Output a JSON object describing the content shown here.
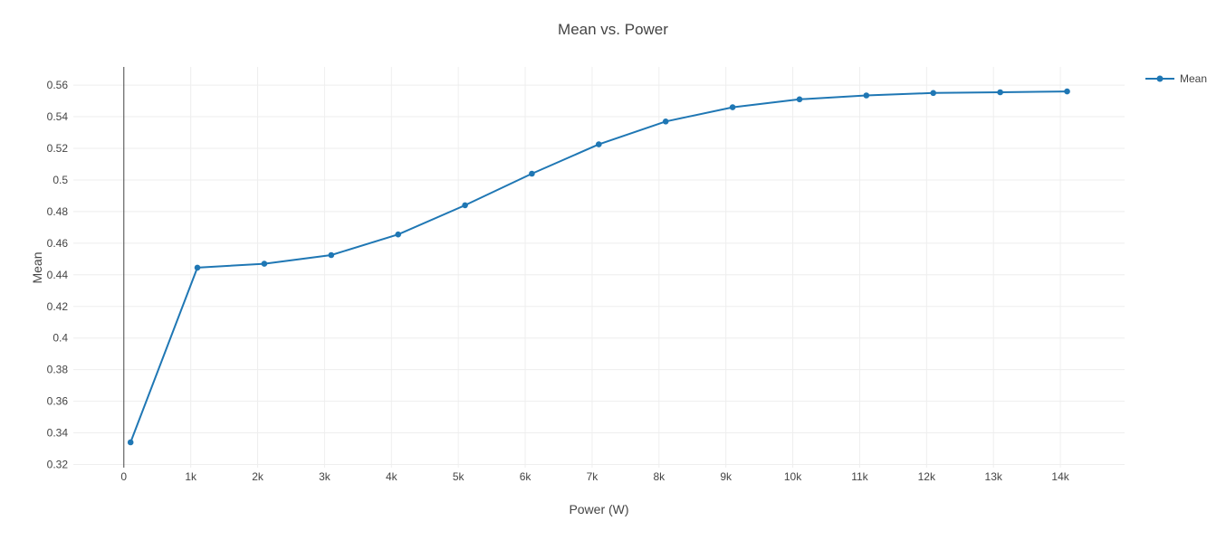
{
  "chart_data": {
    "type": "line",
    "title": "Mean vs. Power",
    "xlabel": "Power (W)",
    "ylabel": "Mean",
    "legend_position": "right",
    "grid": true,
    "xlim": [
      -755,
      14960
    ],
    "ylim": [
      0.318,
      0.5715
    ],
    "x_ticks": [
      {
        "value": 0,
        "label": "0"
      },
      {
        "value": 1000,
        "label": "1k"
      },
      {
        "value": 2000,
        "label": "2k"
      },
      {
        "value": 3000,
        "label": "3k"
      },
      {
        "value": 4000,
        "label": "4k"
      },
      {
        "value": 5000,
        "label": "5k"
      },
      {
        "value": 6000,
        "label": "6k"
      },
      {
        "value": 7000,
        "label": "7k"
      },
      {
        "value": 8000,
        "label": "8k"
      },
      {
        "value": 9000,
        "label": "9k"
      },
      {
        "value": 10000,
        "label": "10k"
      },
      {
        "value": 11000,
        "label": "11k"
      },
      {
        "value": 12000,
        "label": "12k"
      },
      {
        "value": 13000,
        "label": "13k"
      },
      {
        "value": 14000,
        "label": "14k"
      }
    ],
    "y_ticks": [
      {
        "value": 0.32,
        "label": "0.32"
      },
      {
        "value": 0.34,
        "label": "0.34"
      },
      {
        "value": 0.36,
        "label": "0.36"
      },
      {
        "value": 0.38,
        "label": "0.38"
      },
      {
        "value": 0.4,
        "label": "0.4"
      },
      {
        "value": 0.42,
        "label": "0.42"
      },
      {
        "value": 0.44,
        "label": "0.44"
      },
      {
        "value": 0.46,
        "label": "0.46"
      },
      {
        "value": 0.48,
        "label": "0.48"
      },
      {
        "value": 0.5,
        "label": "0.5"
      },
      {
        "value": 0.52,
        "label": "0.52"
      },
      {
        "value": 0.54,
        "label": "0.54"
      },
      {
        "value": 0.56,
        "label": "0.56"
      }
    ],
    "zeroline_x": 0,
    "series": [
      {
        "name": "Mean",
        "color": "#1f77b4",
        "x": [
          100,
          1100,
          2100,
          3100,
          4100,
          5100,
          6100,
          7100,
          8100,
          9100,
          10100,
          11100,
          12100,
          13100,
          14100
        ],
        "y": [
          0.334,
          0.4445,
          0.447,
          0.4525,
          0.4655,
          0.484,
          0.504,
          0.5225,
          0.537,
          0.546,
          0.551,
          0.5535,
          0.555,
          0.5555,
          0.556
        ]
      }
    ],
    "colors": {
      "line": "#1f77b4",
      "text": "#444444",
      "grid": "#eeeeee",
      "zeroline": "#444444",
      "background": "#ffffff"
    }
  }
}
